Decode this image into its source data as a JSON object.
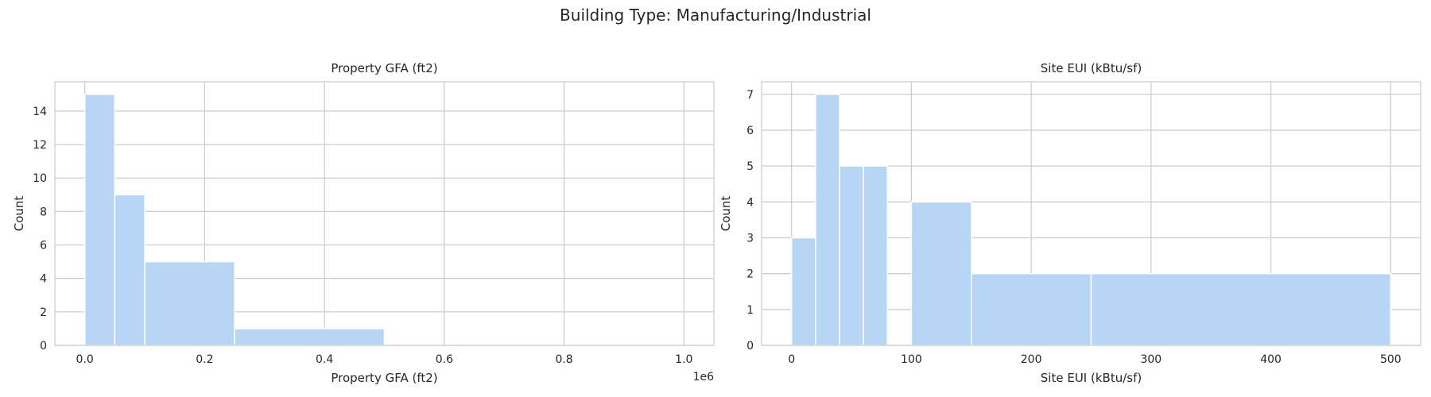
{
  "figure": {
    "title": "Building Type: Manufacturing/Industrial",
    "bar_color": "#b7d5f4",
    "grid_color": "#cccccc"
  },
  "chart_data": [
    {
      "type": "bar",
      "title": "Property GFA (ft2)",
      "xlabel": "Property GFA (ft2)",
      "ylabel": "Count",
      "x_offset_label": "1e6",
      "xlim": [
        -0.05,
        1.05
      ],
      "ylim": [
        0,
        15.75
      ],
      "xticks": [
        0.0,
        0.2,
        0.4,
        0.6,
        0.8,
        1.0
      ],
      "xtick_labels": [
        "0.0",
        "0.2",
        "0.4",
        "0.6",
        "0.8",
        "1.0"
      ],
      "yticks": [
        0,
        2,
        4,
        6,
        8,
        10,
        12,
        14
      ],
      "ytick_labels": [
        "0",
        "2",
        "4",
        "6",
        "8",
        "10",
        "12",
        "14"
      ],
      "grid": true,
      "bins": [
        {
          "x0": 0.0,
          "x1": 0.05,
          "count": 15
        },
        {
          "x0": 0.05,
          "x1": 0.1,
          "count": 9
        },
        {
          "x0": 0.1,
          "x1": 0.25,
          "count": 5
        },
        {
          "x0": 0.25,
          "x1": 0.5,
          "count": 1
        },
        {
          "x0": 0.5,
          "x1": 1.0,
          "count": 0
        }
      ]
    },
    {
      "type": "bar",
      "title": "Site EUI (kBtu/sf)",
      "xlabel": "Site EUI (kBtu/sf)",
      "ylabel": "Count",
      "xlim": [
        -25,
        525
      ],
      "ylim": [
        0,
        7.35
      ],
      "xticks": [
        0,
        100,
        200,
        300,
        400,
        500
      ],
      "xtick_labels": [
        "0",
        "100",
        "200",
        "300",
        "400",
        "500"
      ],
      "yticks": [
        0,
        1,
        2,
        3,
        4,
        5,
        6,
        7
      ],
      "ytick_labels": [
        "0",
        "1",
        "2",
        "3",
        "4",
        "5",
        "6",
        "7"
      ],
      "grid": true,
      "bins": [
        {
          "x0": 0,
          "x1": 20,
          "count": 3
        },
        {
          "x0": 20,
          "x1": 40,
          "count": 7
        },
        {
          "x0": 40,
          "x1": 60,
          "count": 5
        },
        {
          "x0": 60,
          "x1": 80,
          "count": 5
        },
        {
          "x0": 80,
          "x1": 100,
          "count": 0
        },
        {
          "x0": 100,
          "x1": 150,
          "count": 4
        },
        {
          "x0": 150,
          "x1": 250,
          "count": 2
        },
        {
          "x0": 250,
          "x1": 500,
          "count": 2
        }
      ]
    }
  ]
}
